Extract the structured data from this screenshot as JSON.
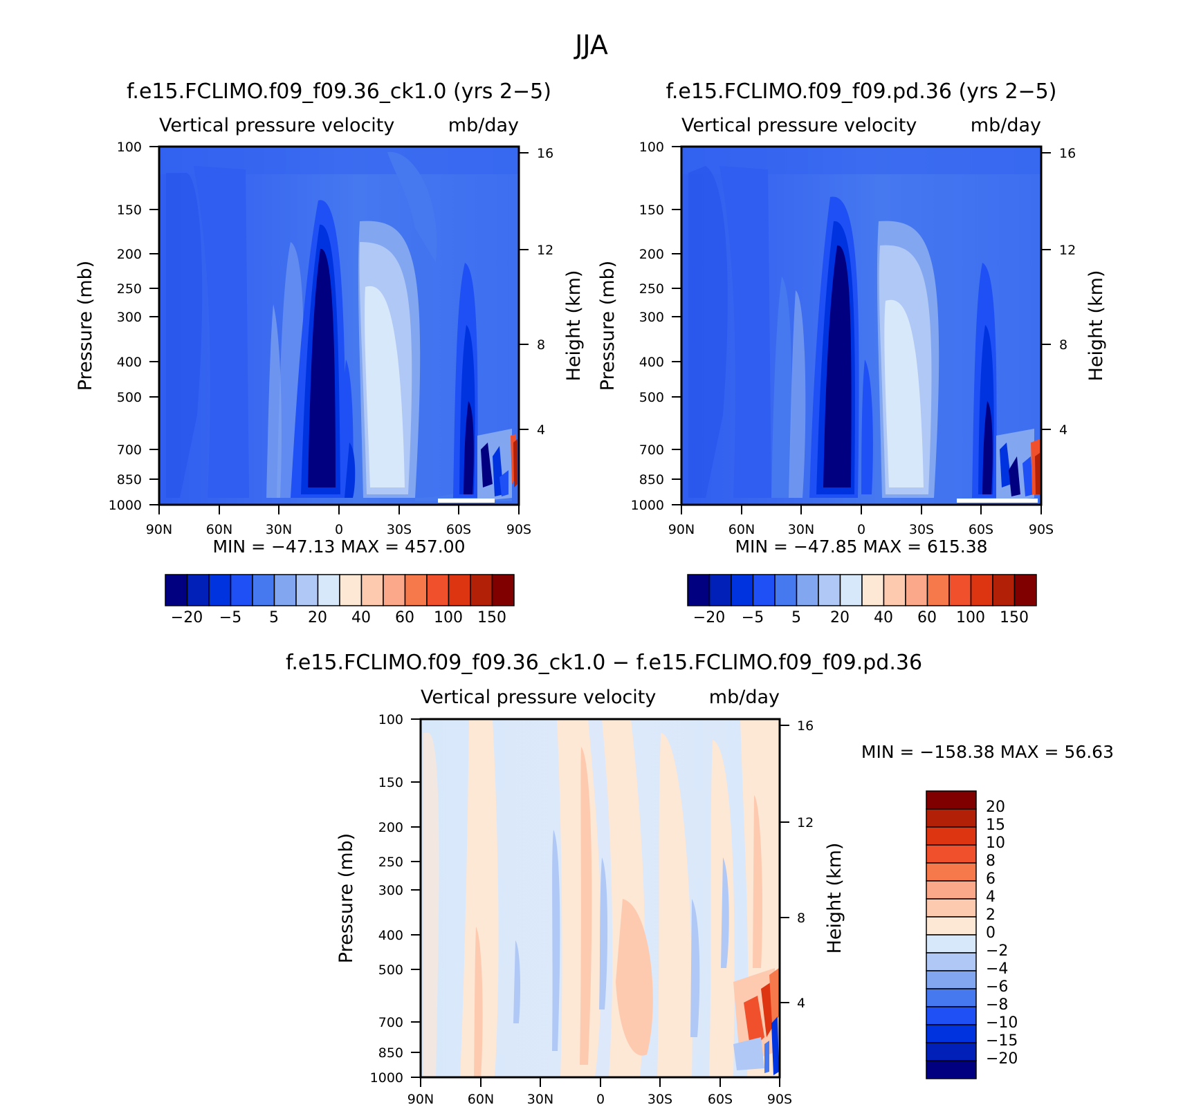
{
  "figure": {
    "title": "JJA"
  },
  "chart_data": [
    {
      "type": "heatmap",
      "title": "f.e15.FCLIMO.f09_f09.36_ck1.0 (yrs 2−5)",
      "subtitle_left": "Vertical pressure velocity",
      "subtitle_right": "mb/day",
      "xlabel": "",
      "ylabel": "Pressure (mb)",
      "ylabel_right": "Height (km)",
      "x_ticks": [
        "90N",
        "60N",
        "30N",
        "0",
        "30S",
        "60S",
        "90S"
      ],
      "y_ticks": [
        100,
        150,
        200,
        250,
        300,
        400,
        500,
        700,
        850,
        1000
      ],
      "y_ticks_right": [
        16,
        12,
        8,
        4
      ],
      "y_scale": "log",
      "minmax_text": "MIN = −47.13   MAX = 457.00",
      "min": -47.13,
      "max": 457.0,
      "colorbar": {
        "orientation": "horizontal",
        "levels": [
          -20,
          -15,
          -10,
          -5,
          0,
          5,
          10,
          20,
          30,
          40,
          50,
          60,
          80,
          100,
          120,
          150
        ],
        "labels": [
          "−20",
          "−5",
          "5",
          "20",
          "40",
          "60",
          "100",
          "150"
        ]
      }
    },
    {
      "type": "heatmap",
      "title": "f.e15.FCLIMO.f09_f09.pd.36 (yrs 2−5)",
      "subtitle_left": "Vertical pressure velocity",
      "subtitle_right": "mb/day",
      "xlabel": "",
      "ylabel": "Pressure (mb)",
      "ylabel_right": "Height (km)",
      "x_ticks": [
        "90N",
        "60N",
        "30N",
        "0",
        "30S",
        "60S",
        "90S"
      ],
      "y_ticks": [
        100,
        150,
        200,
        250,
        300,
        400,
        500,
        700,
        850,
        1000
      ],
      "y_ticks_right": [
        16,
        12,
        8,
        4
      ],
      "y_scale": "log",
      "minmax_text": "MIN = −47.85   MAX = 615.38",
      "min": -47.85,
      "max": 615.38,
      "colorbar": {
        "orientation": "horizontal",
        "levels": [
          -20,
          -15,
          -10,
          -5,
          0,
          5,
          10,
          20,
          30,
          40,
          50,
          60,
          80,
          100,
          120,
          150
        ],
        "labels": [
          "−20",
          "−5",
          "5",
          "20",
          "40",
          "60",
          "100",
          "150"
        ]
      }
    },
    {
      "type": "heatmap",
      "title": "f.e15.FCLIMO.f09_f09.36_ck1.0 − f.e15.FCLIMO.f09_f09.pd.36",
      "subtitle_left": "Vertical pressure velocity",
      "subtitle_right": "mb/day",
      "xlabel": "",
      "ylabel": "Pressure (mb)",
      "ylabel_right": "Height (km)",
      "x_ticks": [
        "90N",
        "60N",
        "30N",
        "0",
        "30S",
        "60S",
        "90S"
      ],
      "y_ticks": [
        100,
        150,
        200,
        250,
        300,
        400,
        500,
        700,
        850,
        1000
      ],
      "y_ticks_right": [
        16,
        12,
        8,
        4
      ],
      "y_scale": "log",
      "minmax_text": "MIN = −158.38   MAX =   56.63",
      "min": -158.38,
      "max": 56.63,
      "colorbar": {
        "orientation": "vertical",
        "labels": [
          "20",
          "15",
          "10",
          "8",
          "6",
          "4",
          "2",
          "0",
          "−2",
          "−4",
          "−6",
          "−8",
          "−10",
          "−15",
          "−20"
        ]
      }
    }
  ],
  "colors": {
    "cb_main": [
      "#000080",
      "#0020b8",
      "#0033e0",
      "#1e50f5",
      "#4678f0",
      "#82a6f0",
      "#b0c8f5",
      "#d8e8fb",
      "#fde7d5",
      "#fdcab0",
      "#fba88a",
      "#f6794b",
      "#f0502c",
      "#dd3512",
      "#b32008",
      "#800000"
    ],
    "cb_diff": [
      "#800000",
      "#b32008",
      "#dd3512",
      "#f0502c",
      "#f6794b",
      "#fba88a",
      "#fdcab0",
      "#fde7d5",
      "#d8e8fb",
      "#b0c8f5",
      "#82a6f0",
      "#4678f0",
      "#1e50f5",
      "#0033e0",
      "#0020b8",
      "#000080"
    ]
  }
}
